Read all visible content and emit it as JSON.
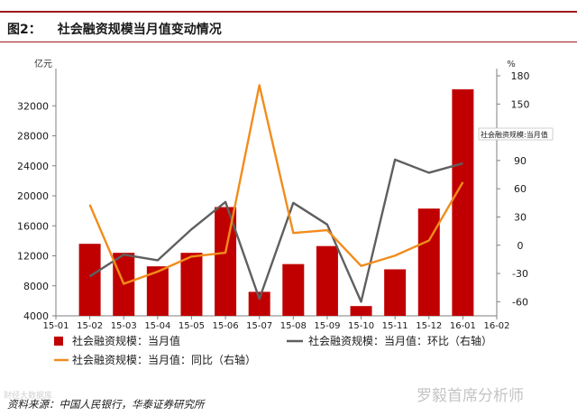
{
  "figure": {
    "number": "图2：",
    "title": "社会融资规模当月值变动情况"
  },
  "source": "资料来源：中国人民银行，华泰证券研究所",
  "watermark": "罗毅首席分析师",
  "corner_mark": "财经大数据库",
  "colors": {
    "bar": "#c00000",
    "mom_line": "#5f5f5f",
    "yoy_line": "#f28c1c",
    "title_rule": "#9e1b20",
    "axis": "#7f7f7f"
  },
  "chart_data": {
    "type": "bar",
    "categories": [
      "15-01",
      "15-02",
      "15-03",
      "15-04",
      "15-05",
      "15-06",
      "15-07",
      "15-08",
      "15-09",
      "15-10",
      "15-11",
      "15-12",
      "16-01",
      "16-02"
    ],
    "left_axis": {
      "unit": "亿元",
      "range": [
        4000,
        36000
      ],
      "ticks": [
        4000,
        8000,
        12000,
        16000,
        20000,
        24000,
        28000,
        32000
      ]
    },
    "right_axis": {
      "unit": "%",
      "range": [
        -75,
        180
      ],
      "ticks": [
        -60,
        -30,
        0,
        30,
        60,
        90,
        120,
        150,
        180
      ]
    },
    "series": [
      {
        "name": "社会融资规模：当月值",
        "type": "bar",
        "axis": "left",
        "values": [
          null,
          13600,
          12400,
          10600,
          12400,
          18500,
          7200,
          10900,
          13300,
          5300,
          10200,
          18300,
          34200,
          null
        ]
      },
      {
        "name": "社会融资规模：当月值：环比（右轴）",
        "type": "line",
        "axis": "right",
        "values": [
          null,
          -33,
          -10,
          -16,
          17,
          46,
          -57,
          45,
          22,
          -60,
          91,
          77,
          87,
          null
        ]
      },
      {
        "name": "社会融资规模：当月值：同比（右轴）",
        "type": "line",
        "axis": "right",
        "values": [
          null,
          43,
          -41,
          -28,
          -12,
          -8,
          170,
          13,
          16,
          -22,
          -11,
          5,
          67,
          null
        ]
      }
    ],
    "annotation": "社会融资规模:当月值",
    "grid": false,
    "legend_position": "bottom"
  }
}
